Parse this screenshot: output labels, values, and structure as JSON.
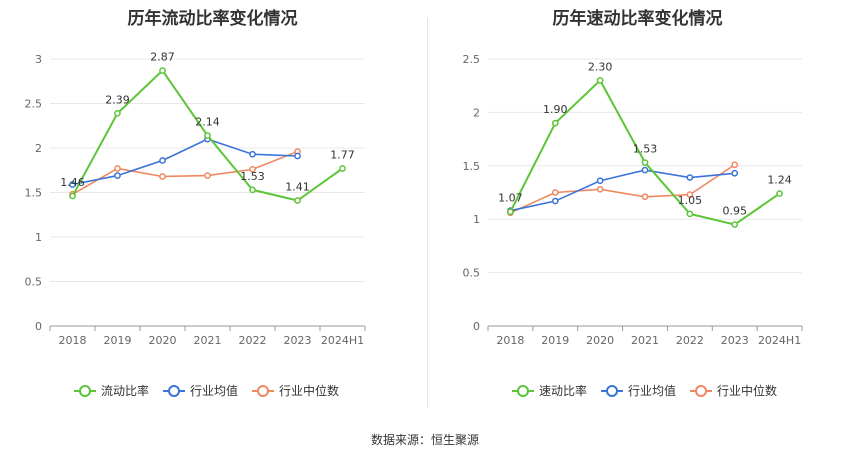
{
  "source_text": "数据来源：恒生聚源",
  "colors": {
    "primary": "#5cc537",
    "average": "#3b73d9",
    "median": "#f08760"
  },
  "chart_data": [
    {
      "type": "line",
      "title": "历年流动比率变化情况",
      "categories": [
        "2018",
        "2019",
        "2020",
        "2021",
        "2022",
        "2023",
        "2024H1"
      ],
      "ylim": [
        0,
        3
      ],
      "yticks": [
        0,
        0.5,
        1,
        1.5,
        2,
        2.5,
        3
      ],
      "ytick_labels": [
        "0",
        "0.5",
        "1",
        "1.5",
        "2",
        "2.5",
        "3"
      ],
      "grid": true,
      "legend_position": "bottom",
      "series": [
        {
          "name": "流动比率",
          "values": [
            1.46,
            2.39,
            2.87,
            2.14,
            1.53,
            1.41,
            1.77
          ],
          "labels": [
            "1.46",
            "2.39",
            "2.87",
            "2.14",
            "1.53",
            "1.41",
            "1.77"
          ]
        },
        {
          "name": "行业均值",
          "values": [
            1.59,
            1.69,
            1.86,
            2.1,
            1.93,
            1.91,
            null
          ]
        },
        {
          "name": "行业中位数",
          "values": [
            1.48,
            1.77,
            1.68,
            1.69,
            1.76,
            1.96,
            null
          ]
        }
      ]
    },
    {
      "type": "line",
      "title": "历年速动比率变化情况",
      "categories": [
        "2018",
        "2019",
        "2020",
        "2021",
        "2022",
        "2023",
        "2024H1"
      ],
      "ylim": [
        0,
        2.5
      ],
      "yticks": [
        0,
        0.5,
        1,
        1.5,
        2,
        2.5
      ],
      "ytick_labels": [
        "0",
        "0.5",
        "1",
        "1.5",
        "2",
        "2.5"
      ],
      "grid": true,
      "legend_position": "bottom",
      "series": [
        {
          "name": "速动比率",
          "values": [
            1.07,
            1.9,
            2.3,
            1.53,
            1.05,
            0.95,
            1.24
          ],
          "labels": [
            "1.07",
            "1.90",
            "2.30",
            "1.53",
            "1.05",
            "0.95",
            "1.24"
          ]
        },
        {
          "name": "行业均值",
          "values": [
            1.08,
            1.17,
            1.36,
            1.46,
            1.39,
            1.43,
            null
          ]
        },
        {
          "name": "行业中位数",
          "values": [
            1.06,
            1.25,
            1.28,
            1.21,
            1.23,
            1.51,
            null
          ]
        }
      ]
    }
  ]
}
